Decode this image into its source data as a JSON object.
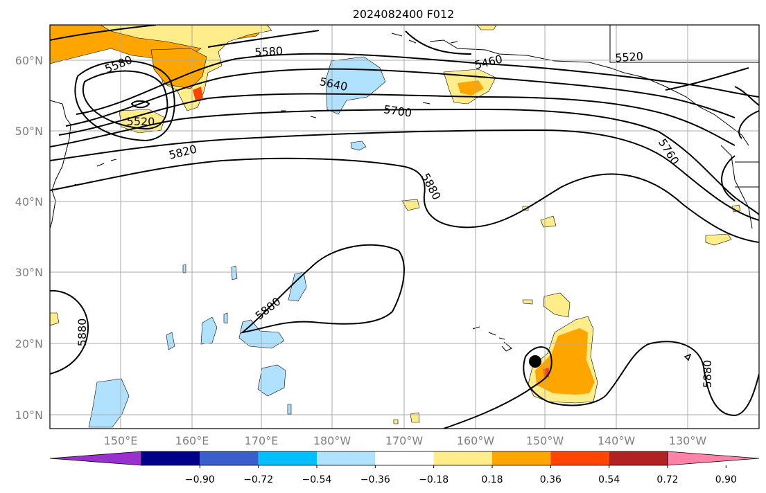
{
  "title": "2024082400 F012",
  "lon_ticks": [
    "150°E",
    "160°E",
    "170°E",
    "180°W",
    "170°W",
    "160°W",
    "150°W",
    "140°W",
    "130°W"
  ],
  "lat_ticks": [
    "10°N",
    "20°N",
    "30°N",
    "40°N",
    "50°N",
    "60°N"
  ],
  "contour_labels": [
    "5580",
    "5520",
    "5580",
    "5640",
    "5460",
    "5520",
    "5700",
    "5760",
    "5820",
    "5880",
    "5880",
    "5880",
    "5880"
  ],
  "colorbar": {
    "colors": [
      "#9b30d0",
      "#00008b",
      "#3a5fcd",
      "#00bfff",
      "#b0e2ff",
      "#ffffff",
      "#ffec8b",
      "#ffa500",
      "#ff4500",
      "#b22222",
      "#ff82ab"
    ],
    "labels": [
      "−0.90",
      "−0.72",
      "−0.54",
      "−0.36",
      "−0.18",
      "0.18",
      "0.36",
      "0.54",
      "0.72",
      "0.90"
    ]
  },
  "marker": {
    "name": "center point",
    "color": "#000000"
  }
}
